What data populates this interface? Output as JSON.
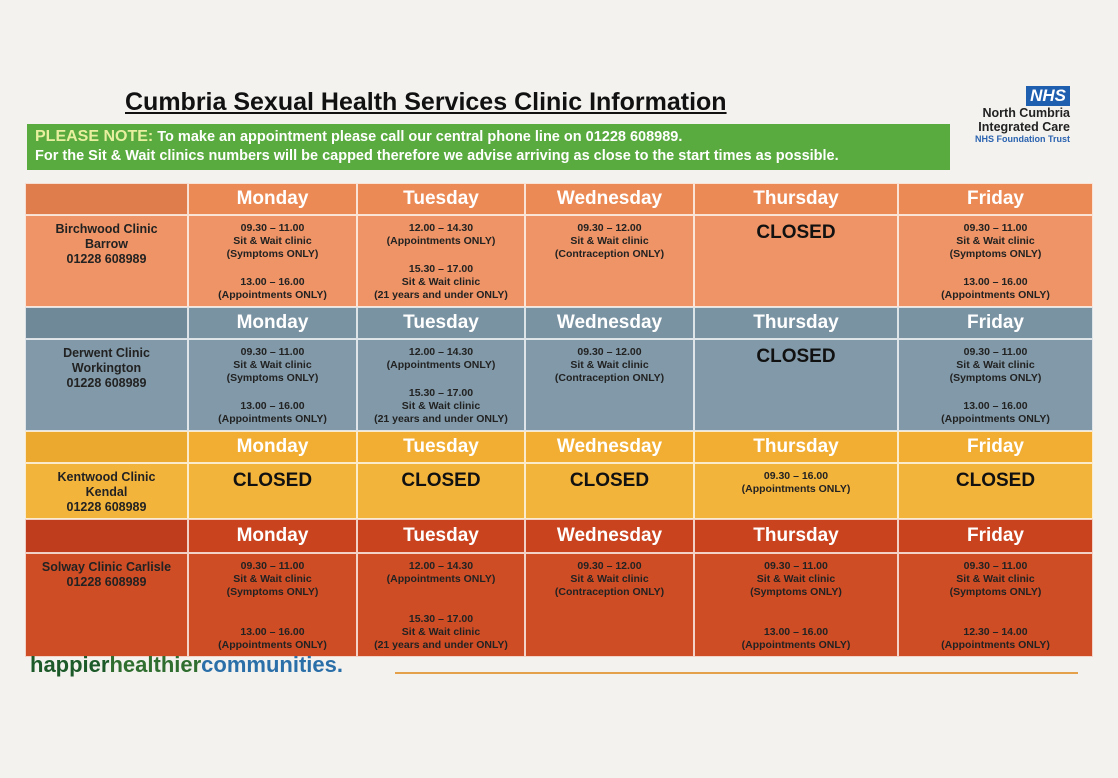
{
  "header": {
    "title": "Cumbria Sexual Health Services Clinic Information",
    "logo": {
      "badge": "NHS",
      "org_lines": [
        "North Cumbria",
        "Integrated Care"
      ],
      "trust": "NHS Foundation Trust"
    }
  },
  "notice": {
    "label": "PLEASE NOTE:",
    "lines": [
      "To make an appointment please call our central phone line on 01228 608989.",
      "For the Sit & Wait clinics numbers will be capped therefore we advise arriving as close to the start times as possible."
    ]
  },
  "days": [
    "Monday",
    "Tuesday",
    "Wednesday",
    "Thursday",
    "Friday"
  ],
  "clinics": [
    {
      "name_lines": [
        "Birchwood Clinic",
        "Barrow"
      ],
      "phone": "01228 608989",
      "schedule": [
        [
          [
            "09.30 – 11.00",
            "Sit & Wait clinic",
            "(Symptoms ONLY)"
          ],
          [
            "13.00 – 16.00",
            "(Appointments ONLY)"
          ]
        ],
        [
          [
            "12.00 – 14.30",
            "(Appointments ONLY)"
          ],
          [
            "15.30 – 17.00",
            "Sit & Wait clinic",
            "(21 years and under ONLY)"
          ]
        ],
        [
          [
            "09.30 – 12.00",
            "Sit & Wait clinic",
            "(Contraception ONLY)"
          ]
        ],
        "CLOSED",
        [
          [
            "09.30 – 11.00",
            "Sit & Wait clinic",
            "(Symptoms ONLY)"
          ],
          [
            "13.00 – 16.00",
            "(Appointments ONLY)"
          ]
        ]
      ]
    },
    {
      "name_lines": [
        "Derwent Clinic",
        "Workington"
      ],
      "phone": "01228 608989",
      "schedule": [
        [
          [
            "09.30 – 11.00",
            "Sit & Wait clinic",
            "(Symptoms ONLY)"
          ],
          [
            "13.00 – 16.00",
            "(Appointments ONLY)"
          ]
        ],
        [
          [
            "12.00 – 14.30",
            "(Appointments ONLY)"
          ],
          [
            "15.30 – 17.00",
            "Sit & Wait clinic",
            "(21 years and under ONLY)"
          ]
        ],
        [
          [
            "09.30 – 12.00",
            "Sit & Wait clinic",
            "(Contraception ONLY)"
          ]
        ],
        "CLOSED",
        [
          [
            "09.30 – 11.00",
            "Sit & Wait clinic",
            "(Symptoms ONLY)"
          ],
          [
            "13.00 – 16.00",
            "(Appointments ONLY)"
          ]
        ]
      ]
    },
    {
      "name_lines": [
        "Kentwood Clinic",
        "Kendal"
      ],
      "phone": "01228 608989",
      "schedule": [
        "CLOSED",
        "CLOSED",
        "CLOSED",
        [
          [
            "09.30 – 16.00",
            "(Appointments ONLY)"
          ]
        ],
        "CLOSED"
      ]
    },
    {
      "name_lines": [
        "Solway Clinic Carlisle"
      ],
      "phone": "01228 608989",
      "schedule": [
        [
          [
            "09.30 – 11.00",
            "Sit & Wait clinic",
            "(Symptoms ONLY)"
          ],
          [
            "13.00 – 16.00",
            "(Appointments ONLY)"
          ]
        ],
        [
          [
            "12.00 – 14.30",
            "(Appointments ONLY)"
          ],
          [
            "15.30 – 17.00",
            "Sit & Wait clinic",
            "(21 years and under ONLY)"
          ]
        ],
        [
          [
            "09.30 – 12.00",
            "Sit & Wait clinic",
            "(Contraception ONLY)"
          ]
        ],
        [
          [
            "09.30 – 11.00",
            "Sit & Wait clinic",
            "(Symptoms ONLY)"
          ],
          [
            "13.00 – 16.00",
            "(Appointments ONLY)"
          ]
        ],
        [
          [
            "09.30 – 11.00",
            "Sit & Wait clinic",
            "(Symptoms ONLY)"
          ],
          [
            "12.30 – 14.00",
            "(Appointments ONLY)"
          ]
        ]
      ]
    }
  ],
  "footer": {
    "slogan_parts": [
      "happier",
      "healthier",
      "communities."
    ]
  }
}
